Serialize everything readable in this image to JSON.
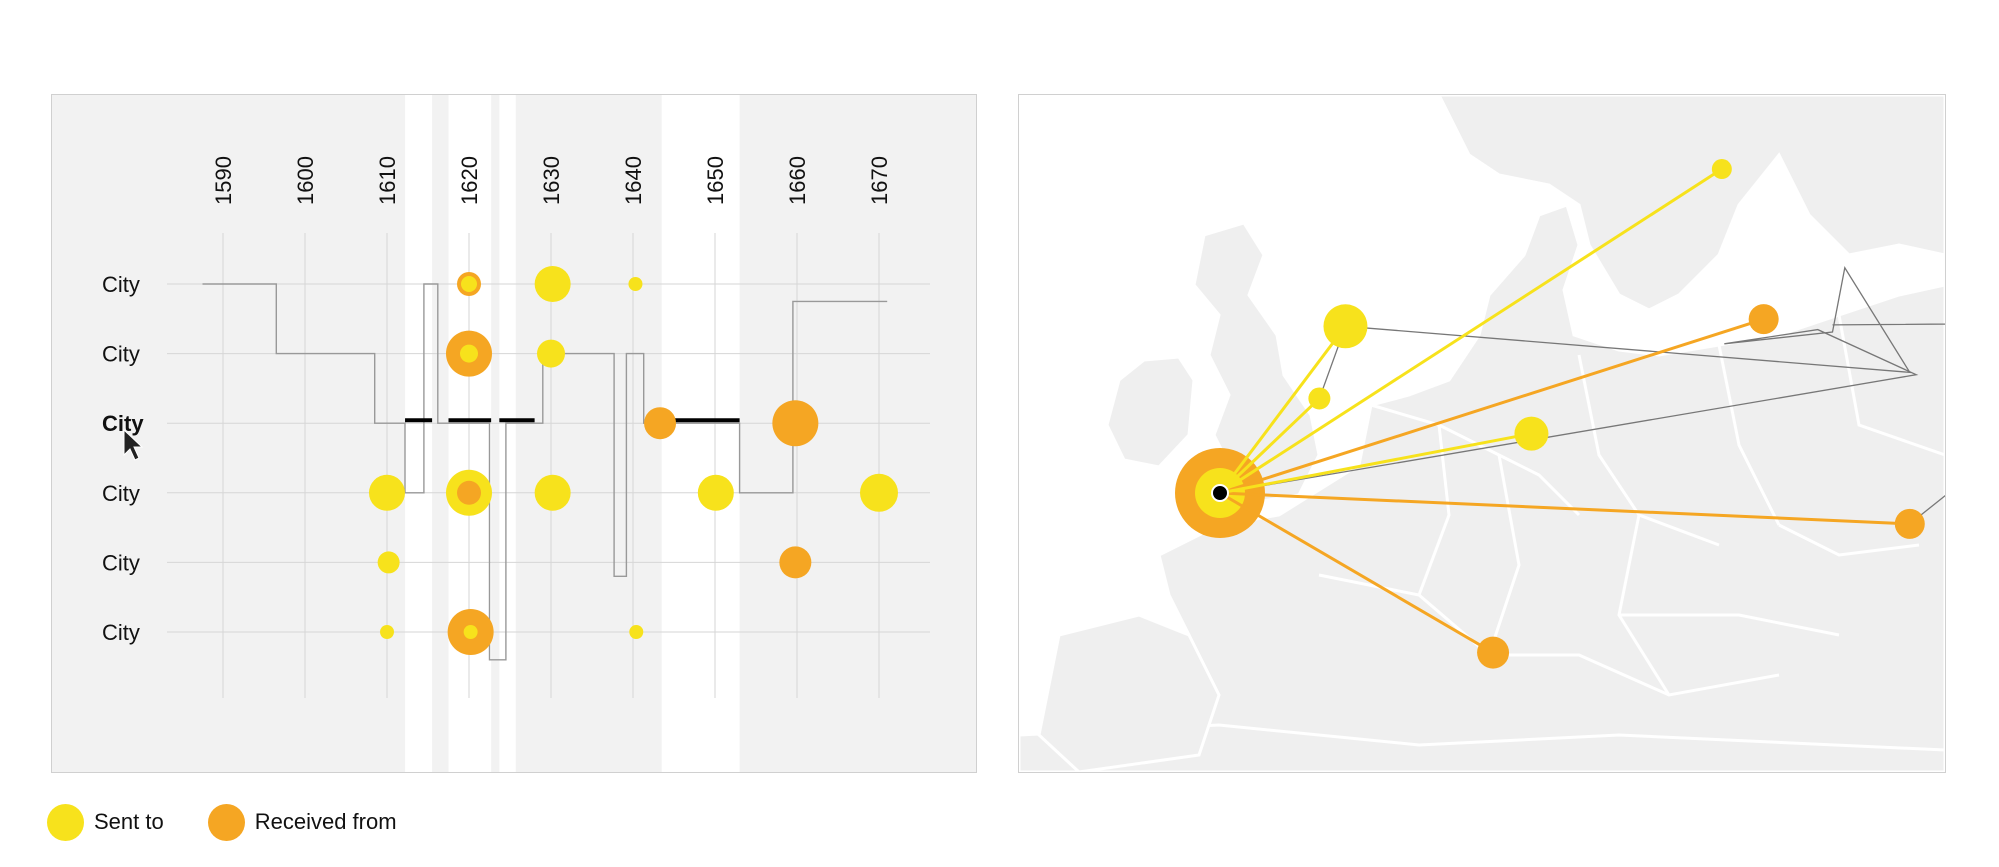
{
  "colors": {
    "sent": "#f7e21c",
    "received": "#f5a623",
    "panel_bg": "#f2f2f2",
    "grid": "#d6d6d6",
    "path": "#999999",
    "active_segment": "#000000"
  },
  "legend": {
    "sent_label": "Sent to",
    "received_label": "Received from"
  },
  "chart_data": [
    {
      "type": "scatter",
      "x_ticks": [
        1590,
        1600,
        1610,
        1620,
        1630,
        1640,
        1650,
        1660,
        1670
      ],
      "rows": [
        {
          "label": "City",
          "active": false
        },
        {
          "label": "City",
          "active": false
        },
        {
          "label": "City",
          "active": true
        },
        {
          "label": "City",
          "active": false
        },
        {
          "label": "City",
          "active": false
        },
        {
          "label": "City",
          "active": false
        }
      ],
      "highlight_periods": [
        [
          1612.2,
          1615.5
        ],
        [
          1617.5,
          1622.7
        ],
        [
          1623.7,
          1625.7
        ],
        [
          1643.5,
          1653
        ]
      ],
      "series": [
        {
          "name": "Sent to",
          "points": [
            {
              "x": 1620,
              "row": 0,
              "size": 8
            },
            {
              "x": 1630.2,
              "row": 0,
              "size": 18
            },
            {
              "x": 1640.3,
              "row": 0,
              "size": 7
            },
            {
              "x": 1620,
              "row": 1,
              "size": 9
            },
            {
              "x": 1630,
              "row": 1,
              "size": 14
            },
            {
              "x": 1610,
              "row": 3,
              "size": 18
            },
            {
              "x": 1620,
              "row": 3,
              "size": 23
            },
            {
              "x": 1630.2,
              "row": 3,
              "size": 18
            },
            {
              "x": 1650.1,
              "row": 3,
              "size": 18
            },
            {
              "x": 1670,
              "row": 3,
              "size": 19
            },
            {
              "x": 1610.2,
              "row": 4,
              "size": 11
            },
            {
              "x": 1610,
              "row": 5,
              "size": 7
            },
            {
              "x": 1620.2,
              "row": 5,
              "size": 7
            },
            {
              "x": 1640.4,
              "row": 5,
              "size": 7
            }
          ]
        },
        {
          "name": "Received from",
          "points": [
            {
              "x": 1620,
              "row": 0,
              "size": 12
            },
            {
              "x": 1620,
              "row": 1,
              "size": 23
            },
            {
              "x": 1643.3,
              "row": 2,
              "size": 16
            },
            {
              "x": 1659.8,
              "row": 2,
              "size": 23
            },
            {
              "x": 1620,
              "row": 3,
              "size": 12
            },
            {
              "x": 1659.8,
              "row": 4,
              "size": 16
            },
            {
              "x": 1620.2,
              "row": 5,
              "size": 23
            }
          ]
        }
      ],
      "path": [
        [
          1587.5,
          0
        ],
        [
          1596.5,
          0
        ],
        [
          1596.5,
          1
        ],
        [
          1608.5,
          1
        ],
        [
          1608.5,
          2
        ],
        [
          1612.2,
          2
        ],
        [
          1612.2,
          3
        ],
        [
          1614.5,
          3
        ],
        [
          1614.5,
          0
        ],
        [
          1616.2,
          0
        ],
        [
          1616.2,
          2
        ],
        [
          1622.5,
          2
        ],
        [
          1622.5,
          5.4
        ],
        [
          1624.5,
          5.4
        ],
        [
          1624.5,
          2
        ],
        [
          1629,
          2
        ],
        [
          1629,
          1
        ],
        [
          1637.7,
          1
        ],
        [
          1637.7,
          4.2
        ],
        [
          1639.2,
          4.2
        ],
        [
          1639.2,
          1
        ],
        [
          1641.3,
          1
        ],
        [
          1641.3,
          2
        ],
        [
          1653,
          2
        ],
        [
          1653,
          3
        ],
        [
          1659.5,
          3
        ],
        [
          1659.5,
          0.25
        ],
        [
          1671,
          0.25
        ]
      ],
      "active_segments": [
        [
          1612.2,
          1615.5
        ],
        [
          1617.5,
          1622.7
        ],
        [
          1623.7,
          1628
        ],
        [
          1641.5,
          1653
        ]
      ]
    },
    {
      "type": "map",
      "origin": {
        "name": "origin",
        "lon": 2.35,
        "lat": 48.86
      },
      "sent_to": [
        {
          "lon": 4.9,
          "lat": 52.37,
          "size": 22
        },
        {
          "lon": 12.55,
          "lat": 55.68,
          "size": 10
        },
        {
          "lon": 4.37,
          "lat": 50.85,
          "size": 11
        },
        {
          "lon": 8.68,
          "lat": 50.11,
          "size": 17
        }
      ],
      "received_from": [
        {
          "lon": 2.35,
          "lat": 48.86,
          "size": 45
        },
        {
          "lon": 13.4,
          "lat": 52.52,
          "size": 15
        },
        {
          "lon": 7.9,
          "lat": 45.5,
          "size": 16
        },
        {
          "lon": 16.37,
          "lat": 48.21,
          "size": 15
        }
      ],
      "travel_path": [
        [
          2.35,
          48.86
        ],
        [
          4.37,
          50.85
        ],
        [
          4.9,
          52.37
        ],
        [
          16.37,
          51.4
        ],
        [
          15.05,
          53.6
        ],
        [
          14.8,
          52.25
        ],
        [
          12.6,
          52.0
        ],
        [
          14.5,
          52.3
        ],
        [
          16.5,
          51.35
        ],
        [
          2.35,
          48.86
        ],
        [
          16.37,
          48.21
        ],
        [
          21.5,
          52.45
        ],
        [
          14.8,
          52.4
        ]
      ]
    }
  ]
}
